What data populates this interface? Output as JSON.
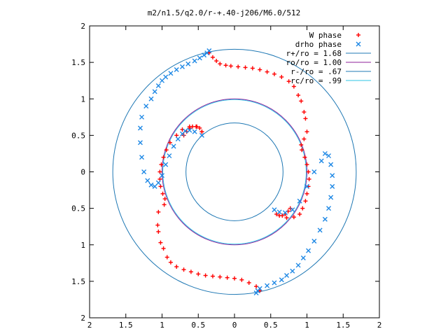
{
  "chart_data": {
    "type": "scatter",
    "title": "m2/n1.5/q2.0/r-+.40-j206/M6.0/512",
    "xlabel": "",
    "ylabel": "",
    "xlim": [
      -2,
      2
    ],
    "ylim": [
      -2,
      2
    ],
    "x_tick_labels": [
      "2",
      "1.5",
      "1",
      "0.5",
      "0",
      "0.5",
      "1",
      "1.5",
      "2"
    ],
    "y_tick_labels": [
      "2",
      "1.5",
      "1",
      "0.5",
      "0",
      "0.5",
      "1",
      "1.5",
      "2"
    ],
    "x_ticks": [
      -2,
      -1.5,
      -1,
      -0.5,
      0,
      0.5,
      1,
      1.5,
      2
    ],
    "y_ticks": [
      2,
      1.5,
      1,
      0.5,
      0,
      -0.5,
      -1,
      -1.5,
      -2
    ],
    "grid": false,
    "legend_position": "top-right",
    "series": [
      {
        "name": "W phase",
        "kind": "points",
        "marker": "+",
        "color": "#ff0000",
        "x": [
          -0.35,
          -0.3,
          -0.25,
          -0.2,
          -0.12,
          -0.05,
          0.05,
          0.15,
          0.25,
          0.35,
          0.45,
          0.55,
          0.65,
          0.75,
          0.82,
          0.88,
          0.92,
          0.96,
          0.98,
          1.0,
          0.96,
          0.92,
          0.93,
          0.97,
          1.0,
          1.02,
          1.03,
          1.02,
          1.0,
          0.98,
          0.94,
          0.9,
          0.82,
          0.72,
          0.35,
          0.3,
          0.2,
          0.1,
          0.0,
          -0.1,
          -0.2,
          -0.3,
          -0.4,
          -0.5,
          -0.6,
          -0.7,
          -0.8,
          -0.88,
          -0.93,
          -0.98,
          -1.02,
          -1.05,
          -1.06,
          -1.05,
          -0.97,
          -0.96,
          -0.99,
          -1.02,
          -1.03,
          -1.03,
          -1.01,
          -0.98,
          -0.94,
          -0.89,
          -0.8,
          -0.72,
          -0.62,
          -0.52,
          -0.45,
          0.58,
          0.62,
          0.66,
          0.7,
          0.74,
          0.77,
          -0.45,
          -0.48,
          -0.53,
          -0.58,
          -0.62,
          -0.66,
          -0.7
        ],
        "y": [
          1.63,
          1.57,
          1.52,
          1.48,
          1.46,
          1.45,
          1.44,
          1.43,
          1.42,
          1.4,
          1.37,
          1.34,
          1.3,
          1.24,
          1.17,
          1.05,
          0.97,
          0.82,
          0.73,
          0.55,
          0.45,
          0.37,
          0.3,
          0.2,
          0.1,
          0.0,
          -0.1,
          -0.2,
          -0.3,
          -0.4,
          -0.5,
          -0.58,
          -0.62,
          -0.63,
          -1.63,
          -1.57,
          -1.52,
          -1.48,
          -1.46,
          -1.45,
          -1.44,
          -1.43,
          -1.42,
          -1.4,
          -1.37,
          -1.34,
          -1.3,
          -1.24,
          -1.17,
          -1.05,
          -0.97,
          -0.82,
          -0.73,
          -0.55,
          -0.45,
          -0.37,
          -0.3,
          -0.2,
          -0.1,
          0.0,
          0.1,
          0.2,
          0.3,
          0.4,
          0.5,
          0.58,
          0.62,
          0.62,
          0.55,
          -0.58,
          -0.6,
          -0.6,
          -0.58,
          -0.54,
          -0.5,
          0.55,
          0.6,
          0.62,
          0.62,
          0.6,
          0.55,
          0.5
        ]
      },
      {
        "name": "drho phase",
        "kind": "points",
        "marker": "x",
        "color": "#1e88e5",
        "x": [
          0.55,
          0.62,
          0.7,
          0.8,
          0.9,
          1.0,
          1.1,
          1.2,
          1.25,
          1.3,
          1.33,
          1.35,
          1.35,
          1.33,
          1.3,
          1.25,
          1.18,
          1.1,
          1.02,
          0.95,
          0.88,
          0.8,
          0.72,
          0.65,
          0.55,
          0.45,
          0.35,
          0.32,
          0.3,
          -0.45,
          -0.55,
          -0.62,
          -0.68,
          -0.72,
          -0.78,
          -0.84,
          -0.9,
          -0.95,
          -1.0,
          -1.05,
          -1.1,
          -1.15,
          -1.2,
          -1.25,
          -1.28,
          -1.3,
          -1.3,
          -1.28,
          -1.22,
          -1.15,
          -1.1,
          -1.05,
          -1.0,
          -0.95,
          -0.88,
          -0.8,
          -0.72,
          -0.64,
          -0.55,
          -0.48,
          -0.42,
          -0.38,
          -0.35
        ],
        "y": [
          -0.52,
          -0.55,
          -0.56,
          -0.52,
          -0.4,
          -0.2,
          0.0,
          0.15,
          0.25,
          0.22,
          0.1,
          -0.05,
          -0.2,
          -0.35,
          -0.5,
          -0.65,
          -0.8,
          -0.95,
          -1.08,
          -1.18,
          -1.28,
          -1.36,
          -1.42,
          -1.48,
          -1.52,
          -1.56,
          -1.6,
          -1.63,
          -1.66,
          0.5,
          0.55,
          0.57,
          0.56,
          0.52,
          0.45,
          0.35,
          0.22,
          0.1,
          -0.05,
          -0.15,
          -0.2,
          -0.18,
          -0.12,
          0.0,
          0.2,
          0.4,
          0.6,
          0.75,
          0.9,
          1.0,
          1.1,
          1.18,
          1.25,
          1.3,
          1.35,
          1.4,
          1.44,
          1.48,
          1.52,
          1.56,
          1.6,
          1.63,
          1.66
        ]
      },
      {
        "name": "r+/ro = 1.68",
        "kind": "circle",
        "radius": 1.68,
        "color": "#1f78b4"
      },
      {
        "name": "ro/ro = 1.00",
        "kind": "circle",
        "radius": 1.0,
        "color": "#8e1f9a"
      },
      {
        "name": "r-/ro = .67",
        "kind": "circle",
        "radius": 0.67,
        "color": "#1f78b4"
      },
      {
        "name": "rc/ro = .99",
        "kind": "circle",
        "radius": 0.99,
        "color": "#2ec4e6"
      }
    ]
  }
}
